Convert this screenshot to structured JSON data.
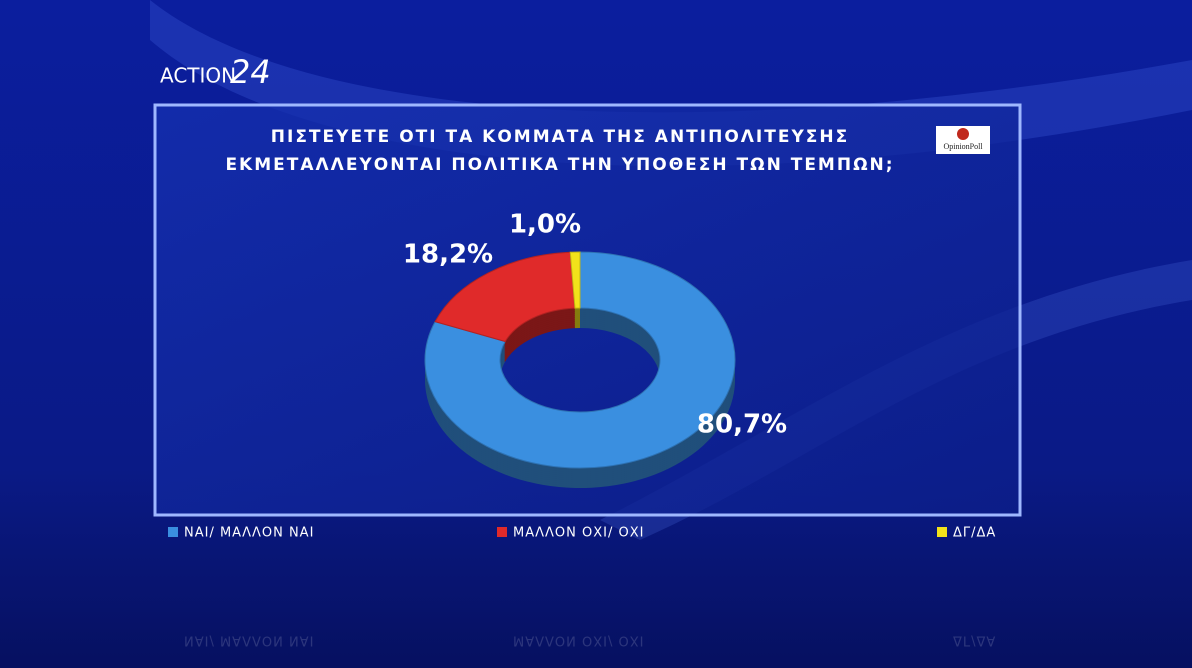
{
  "brand": {
    "channel": "ACTION",
    "channel_number": "24",
    "pollster": "OpinionPoll"
  },
  "chart_data": {
    "type": "donut",
    "title": [
      "ΠΙΣΤΕΥΕΤΕ ΟΤΙ ΤΑ ΚΟΜΜΑΤΑ ΤΗΣ ΑΝΤΙΠΟΛΙΤΕΥΣΗΣ",
      "ΕΚΜΕΤΑΛΛΕΥΟΝΤΑΙ ΠΟΛΙΤΙΚΑ ΤΗΝ ΥΠΟΘΕΣΗ ΤΩΝ ΤΕΜΠΩΝ;"
    ],
    "categories": [
      "ΝΑΙ/ ΜΑΛΛΟΝ ΝΑΙ",
      "ΜΑΛΛΟΝ ΟΧΙ/ ΟΧΙ",
      "ΔΓ/ΔΑ"
    ],
    "values": [
      80.7,
      18.2,
      1.0
    ],
    "value_labels": [
      "80,7%",
      "18,2%",
      "1,0%"
    ],
    "colors": [
      "#3a8fe0",
      "#e02a2a",
      "#f2e21a"
    ]
  }
}
